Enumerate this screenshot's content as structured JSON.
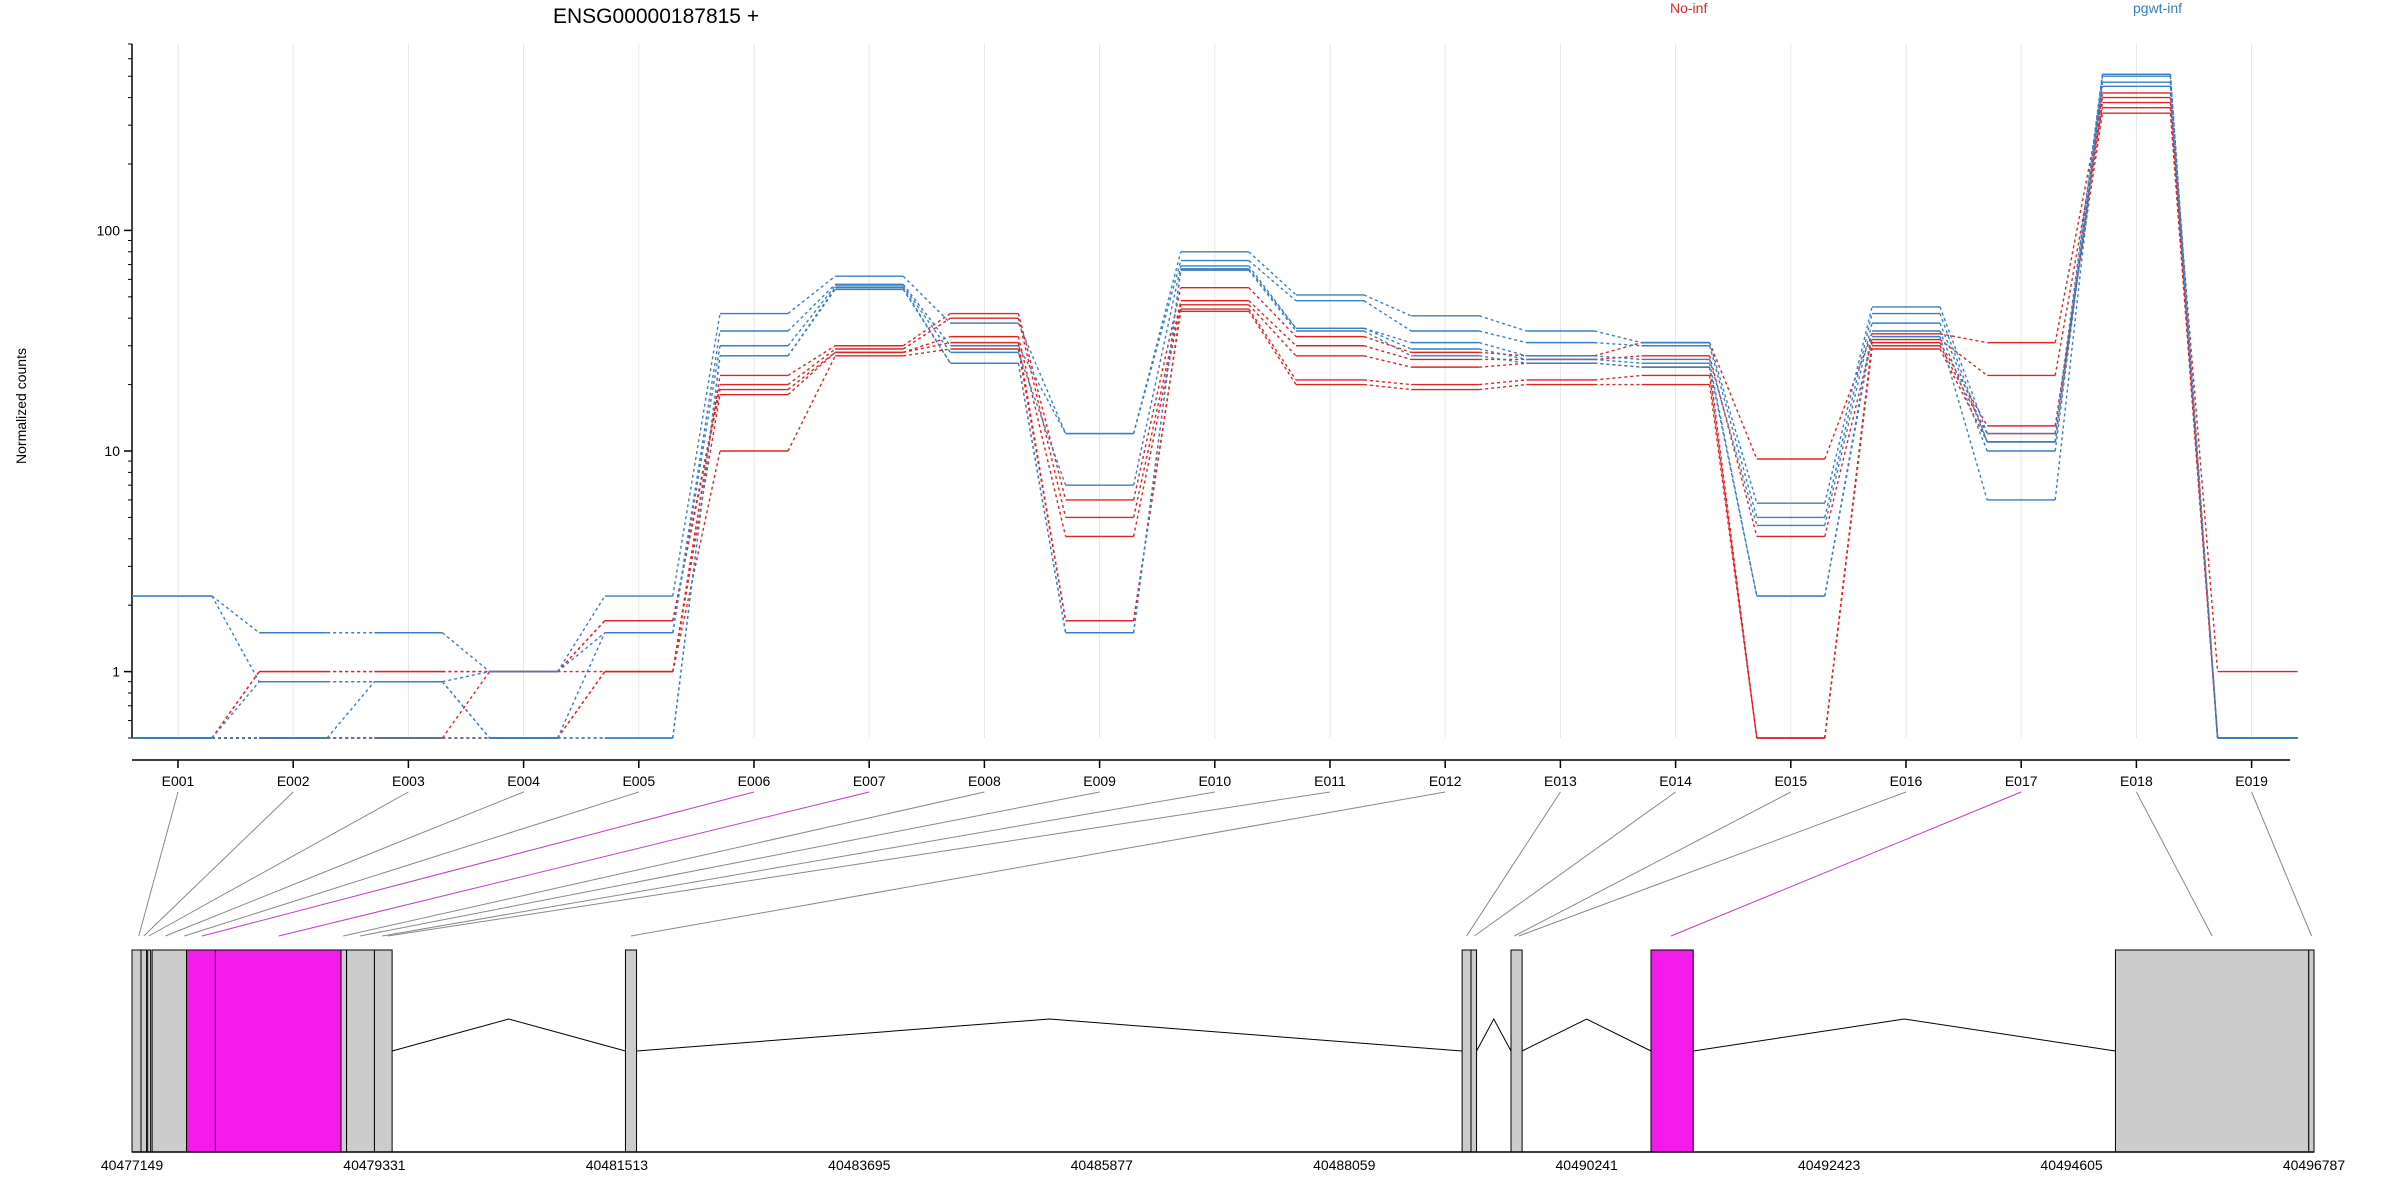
{
  "chart_data": {
    "type": "line",
    "title": "ENSG00000187815 +",
    "ylabel": "Normalized counts",
    "yscale": "log",
    "ylim": [
      0.5,
      700
    ],
    "yticks": [
      {
        "value": 1,
        "label": "1"
      },
      {
        "value": 10,
        "label": "10"
      },
      {
        "value": 100,
        "label": "100"
      }
    ],
    "categories": [
      "E001",
      "E002",
      "E003",
      "E004",
      "E005",
      "E006",
      "E007",
      "E008",
      "E009",
      "E010",
      "E011",
      "E012",
      "E013",
      "E014",
      "E015",
      "E016",
      "E017",
      "E018",
      "E019"
    ],
    "legend": [
      {
        "name": "No-inf",
        "color": "#dc2626"
      },
      {
        "name": "pgwt-inf",
        "color": "#3a7fc1"
      }
    ],
    "series": [
      {
        "group": "No-inf",
        "values": [
          0.5,
          1.0,
          1.0,
          1.0,
          1.0,
          22,
          30,
          42,
          6.0,
          55,
          33,
          28,
          27,
          31,
          9.2,
          34,
          31,
          400,
          1.0
        ]
      },
      {
        "group": "No-inf",
        "values": [
          0.5,
          1.0,
          1.0,
          1.0,
          1.7,
          20,
          29,
          40,
          5.0,
          48,
          30,
          26,
          26,
          27,
          4.1,
          32,
          22,
          360,
          0.5
        ]
      },
      {
        "group": "No-inf",
        "values": [
          0.5,
          0.5,
          0.5,
          1.0,
          1.7,
          19,
          28,
          33,
          4.1,
          46,
          27,
          24,
          25,
          24,
          0.5,
          31,
          13,
          340,
          0.5
        ]
      },
      {
        "group": "No-inf",
        "values": [
          0.5,
          0.5,
          0.5,
          0.5,
          1.0,
          18,
          28,
          31,
          1.7,
          44,
          21,
          20,
          21,
          22,
          0.5,
          30,
          12,
          380,
          0.5
        ]
      },
      {
        "group": "No-inf",
        "values": [
          0.5,
          0.5,
          0.5,
          0.5,
          1.0,
          10,
          27,
          29,
          1.7,
          43,
          20,
          19,
          20,
          20,
          0.5,
          29,
          11,
          420,
          0.5
        ]
      },
      {
        "group": "pgwt-inf",
        "values": [
          2.2,
          1.5,
          1.5,
          1.0,
          2.2,
          42,
          62,
          38,
          12,
          80,
          51,
          41,
          35,
          31,
          5.8,
          45,
          12,
          510,
          0.5
        ]
      },
      {
        "group": "pgwt-inf",
        "values": [
          2.2,
          0.9,
          0.9,
          1.0,
          1.5,
          35,
          57,
          30,
          12,
          73,
          48,
          35,
          31,
          30,
          5.0,
          42,
          11,
          500,
          0.5
        ]
      },
      {
        "group": "pgwt-inf",
        "values": [
          0.5,
          0.9,
          0.9,
          0.5,
          1.5,
          30,
          56,
          28,
          7.0,
          69,
          36,
          31,
          27,
          26,
          4.6,
          38,
          11,
          470,
          0.5
        ]
      },
      {
        "group": "pgwt-inf",
        "values": [
          0.5,
          0.5,
          0.9,
          0.5,
          0.5,
          27,
          55,
          25,
          1.5,
          67,
          36,
          29,
          26,
          25,
          2.2,
          35,
          10,
          450,
          0.5
        ]
      },
      {
        "group": "pgwt-inf",
        "values": [
          0.5,
          0.5,
          0.5,
          0.5,
          0.5,
          27,
          54,
          25,
          1.5,
          66,
          35,
          27,
          25,
          24,
          2.2,
          33,
          6.0,
          510,
          0.5
        ]
      }
    ],
    "genome_ticks": [
      "40477149",
      "40479331",
      "40481513",
      "40483695",
      "40485877",
      "40488059",
      "40490241",
      "40492423",
      "40494605",
      "40496787"
    ],
    "genome_range": [
      40477149,
      40496787
    ],
    "exon_blocks": [
      {
        "start": 40477149,
        "end": 40477230,
        "highlight": false
      },
      {
        "start": 40477230,
        "end": 40477280,
        "highlight": false
      },
      {
        "start": 40477290,
        "end": 40477310,
        "highlight": false
      },
      {
        "start": 40477330,
        "end": 40477640,
        "highlight": false
      },
      {
        "start": 40477640,
        "end": 40477900,
        "highlight": true
      },
      {
        "start": 40477900,
        "end": 40479030,
        "highlight": true
      },
      {
        "start": 40479030,
        "end": 40479080,
        "highlight": false
      },
      {
        "start": 40479080,
        "end": 40479331,
        "highlight": false
      },
      {
        "start": 40479331,
        "end": 40479490,
        "highlight": false
      },
      {
        "start": 40481590,
        "end": 40481690,
        "highlight": false
      },
      {
        "start": 40489120,
        "end": 40489200,
        "highlight": false
      },
      {
        "start": 40489200,
        "end": 40489250,
        "highlight": false
      },
      {
        "start": 40489560,
        "end": 40489660,
        "highlight": false
      },
      {
        "start": 40490820,
        "end": 40491200,
        "highlight": true
      },
      {
        "start": 40495000,
        "end": 40496740,
        "highlight": false
      },
      {
        "start": 40496740,
        "end": 40496787,
        "highlight": false
      }
    ],
    "introns": [
      [
        40479490,
        40481590
      ],
      [
        40481690,
        40489120
      ],
      [
        40489250,
        40489560
      ],
      [
        40489660,
        40490820
      ],
      [
        40491200,
        40495000
      ],
      [
        40496740,
        40496787
      ]
    ],
    "exon_links": [
      {
        "exon": "E001",
        "genome": 40477210,
        "highlight": false
      },
      {
        "exon": "E002",
        "genome": 40477255,
        "highlight": false
      },
      {
        "exon": "E003",
        "genome": 40477300,
        "highlight": false
      },
      {
        "exon": "E004",
        "genome": 40477450,
        "highlight": false
      },
      {
        "exon": "E005",
        "genome": 40477620,
        "highlight": false
      },
      {
        "exon": "E006",
        "genome": 40477780,
        "highlight": true
      },
      {
        "exon": "E007",
        "genome": 40478470,
        "highlight": true
      },
      {
        "exon": "E008",
        "genome": 40479050,
        "highlight": false
      },
      {
        "exon": "E009",
        "genome": 40479200,
        "highlight": false
      },
      {
        "exon": "E010",
        "genome": 40479400,
        "highlight": false
      },
      {
        "exon": "E011",
        "genome": 40479450,
        "highlight": false
      },
      {
        "exon": "E012",
        "genome": 40481640,
        "highlight": false
      },
      {
        "exon": "E013",
        "genome": 40489160,
        "highlight": false
      },
      {
        "exon": "E014",
        "genome": 40489230,
        "highlight": false
      },
      {
        "exon": "E015",
        "genome": 40489590,
        "highlight": false
      },
      {
        "exon": "E016",
        "genome": 40489630,
        "highlight": false
      },
      {
        "exon": "E017",
        "genome": 40491000,
        "highlight": true
      },
      {
        "exon": "E018",
        "genome": 40495870,
        "highlight": false
      },
      {
        "exon": "E019",
        "genome": 40496765,
        "highlight": false
      }
    ],
    "colors": {
      "grid": "#e6e6e6",
      "exon_fill": "#cccccc",
      "exon_highlight": "#f21bea",
      "link": "#888888",
      "link_highlight": "#c040c0",
      "axis": "#000000"
    }
  }
}
